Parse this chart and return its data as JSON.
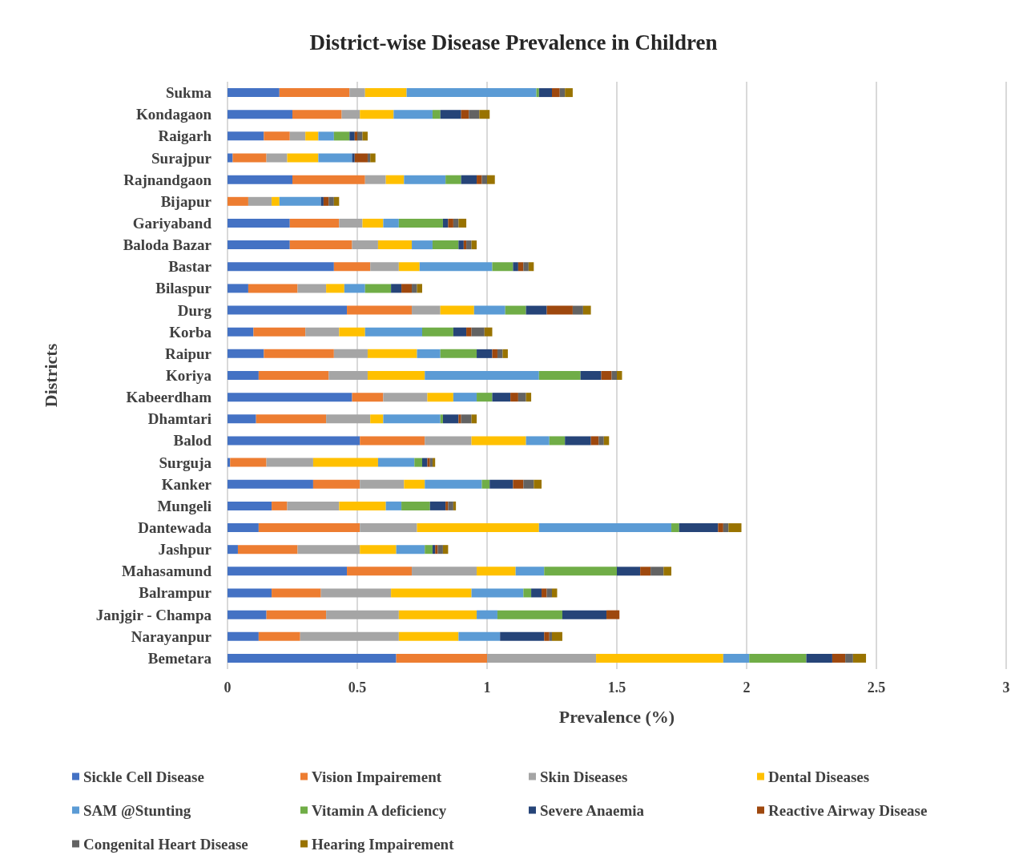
{
  "chart_data": {
    "type": "bar",
    "title": "District-wise Disease Prevalence in Children",
    "xlabel": "Prevalence (%)",
    "ylabel": "Districts",
    "orientation": "horizontal",
    "stacked": true,
    "grid": "x",
    "legend": "bottom",
    "xlim": [
      0,
      3
    ],
    "xticks": [
      0,
      0.5,
      1,
      1.5,
      2,
      2.5,
      3
    ],
    "categories": [
      "Sukma",
      "Kondagaon",
      "Raigarh",
      "Surajpur",
      "Rajnandgaon",
      "Bijapur",
      "Gariyaband",
      "Baloda Bazar",
      "Bastar",
      "Bilaspur",
      "Durg",
      "Korba",
      "Raipur",
      "Koriya",
      "Kabeerdham",
      "Dhamtari",
      "Balod",
      "Surguja",
      "Kanker",
      "Mungeli",
      "Dantewada",
      "Jashpur",
      "Mahasamund",
      "Balrampur",
      "Janjgir - Champa",
      "Narayanpur",
      "Bemetara"
    ],
    "series": [
      {
        "name": "Sickle Cell Disease",
        "color": "#4472c4",
        "values": [
          0.2,
          0.25,
          0.14,
          0.02,
          0.25,
          0,
          0.24,
          0.24,
          0.41,
          0.08,
          0.46,
          0.1,
          0.14,
          0.12,
          0.48,
          0.11,
          0.51,
          0.01,
          0.33,
          0.17,
          0.12,
          0.04,
          0.46,
          0.17,
          0.15,
          0.12,
          0.65
        ]
      },
      {
        "name": "Vision Impairement",
        "color": "#ed7d31",
        "values": [
          0.27,
          0.19,
          0.1,
          0.13,
          0.28,
          0.08,
          0.19,
          0.24,
          0.14,
          0.19,
          0.25,
          0.2,
          0.27,
          0.27,
          0.12,
          0.27,
          0.25,
          0.14,
          0.18,
          0.06,
          0.39,
          0.23,
          0.25,
          0.19,
          0.23,
          0.16,
          0.35
        ]
      },
      {
        "name": "Skin Diseases",
        "color": "#a5a5a5",
        "values": [
          0.06,
          0.07,
          0.06,
          0.08,
          0.08,
          0.09,
          0.09,
          0.1,
          0.11,
          0.11,
          0.11,
          0.13,
          0.13,
          0.15,
          0.17,
          0.17,
          0.18,
          0.18,
          0.17,
          0.2,
          0.22,
          0.24,
          0.25,
          0.27,
          0.28,
          0.38,
          0.42
        ]
      },
      {
        "name": "Dental Diseases",
        "color": "#ffc000",
        "values": [
          0.16,
          0.13,
          0.05,
          0.12,
          0.07,
          0.03,
          0.08,
          0.13,
          0.08,
          0.07,
          0.13,
          0.1,
          0.19,
          0.22,
          0.1,
          0.05,
          0.21,
          0.25,
          0.08,
          0.18,
          0.47,
          0.14,
          0.15,
          0.31,
          0.3,
          0.23,
          0.49
        ]
      },
      {
        "name": "SAM @Stunting",
        "color": "#5b9bd5",
        "values": [
          0.5,
          0.15,
          0.06,
          0.13,
          0.16,
          0.16,
          0.06,
          0.08,
          0.28,
          0.08,
          0.12,
          0.22,
          0.09,
          0.44,
          0.09,
          0.22,
          0.09,
          0.14,
          0.22,
          0.06,
          0.51,
          0.11,
          0.11,
          0.2,
          0.08,
          0.16,
          0.1
        ]
      },
      {
        "name": "Vitamin A deficiency",
        "color": "#70ad47",
        "values": [
          0.01,
          0.03,
          0.06,
          0,
          0.06,
          0,
          0.17,
          0.1,
          0.08,
          0.1,
          0.08,
          0.12,
          0.14,
          0.16,
          0.06,
          0.01,
          0.06,
          0.03,
          0.03,
          0.11,
          0.03,
          0.03,
          0.28,
          0.03,
          0.25,
          0,
          0.22
        ]
      },
      {
        "name": "Severe Anaemia",
        "color": "#264478",
        "values": [
          0.05,
          0.08,
          0.02,
          0.01,
          0.06,
          0.01,
          0.02,
          0.02,
          0.02,
          0.04,
          0.08,
          0.05,
          0.06,
          0.08,
          0.07,
          0.06,
          0.1,
          0.02,
          0.09,
          0.06,
          0.15,
          0.01,
          0.09,
          0.04,
          0.17,
          0.17,
          0.1
        ]
      },
      {
        "name": "Reactive Airway Disease",
        "color": "#9e480e",
        "values": [
          0.03,
          0.03,
          0.01,
          0.05,
          0.02,
          0.02,
          0.02,
          0.01,
          0.02,
          0.04,
          0.1,
          0.02,
          0.02,
          0.04,
          0.03,
          0.01,
          0.03,
          0.01,
          0.04,
          0.01,
          0.02,
          0.01,
          0.04,
          0.02,
          0.05,
          0.02,
          0.05
        ]
      },
      {
        "name": "Congenital Heart Disease",
        "color": "#636363",
        "values": [
          0.02,
          0.04,
          0.02,
          0.01,
          0.02,
          0.02,
          0.02,
          0.02,
          0.02,
          0.02,
          0.04,
          0.05,
          0.02,
          0.02,
          0.03,
          0.04,
          0.02,
          0.01,
          0.04,
          0.02,
          0.02,
          0.02,
          0.05,
          0.02,
          0,
          0.01,
          0.03
        ]
      },
      {
        "name": "Hearing Impairement",
        "color": "#997300",
        "values": [
          0.03,
          0.04,
          0.02,
          0.02,
          0.03,
          0.02,
          0.03,
          0.02,
          0.02,
          0.02,
          0.03,
          0.03,
          0.02,
          0.02,
          0.02,
          0.02,
          0.02,
          0.01,
          0.03,
          0.01,
          0.05,
          0.02,
          0.03,
          0.02,
          0,
          0.04,
          0.05
        ]
      }
    ]
  }
}
